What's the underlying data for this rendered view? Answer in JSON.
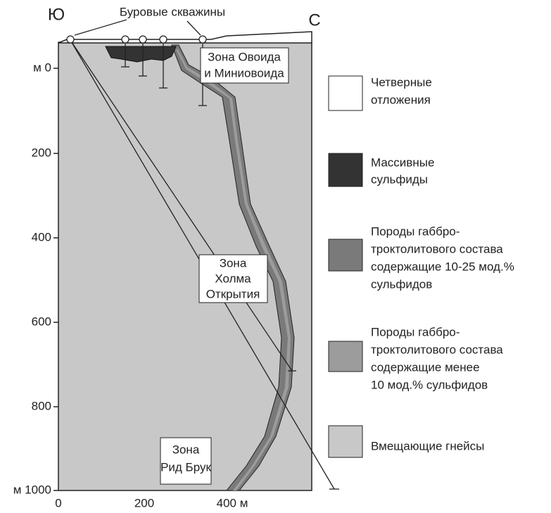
{
  "header": {
    "label": "Буровые скважины",
    "south": "Ю",
    "north": "С"
  },
  "axes": {
    "y_labels": [
      "м 0",
      "200",
      "400",
      "600",
      "800",
      "м 1000"
    ],
    "x_labels": [
      "0",
      "200",
      "400 м"
    ]
  },
  "zones": [
    {
      "label": [
        "Зона Овоида",
        "и Миниовоида"
      ]
    },
    {
      "label": [
        "Зона",
        "Холма",
        "Открытия"
      ]
    },
    {
      "label": [
        "Зона",
        "Рид Брук"
      ]
    }
  ],
  "legend": [
    {
      "label": [
        "Четверные",
        "отложения"
      ]
    },
    {
      "label": [
        "Массивные",
        "сульфиды"
      ]
    },
    {
      "label": [
        "Породы габбро-",
        "троктолитового состава",
        "содержащие 10-25 мод.%",
        "сульфидов"
      ]
    },
    {
      "label": [
        "Породы габбро-",
        "троктолитового состава",
        "содержащие менее",
        "10 мод.% сульфидов"
      ]
    },
    {
      "label": [
        "Вмещающие гнейсы"
      ]
    }
  ]
}
